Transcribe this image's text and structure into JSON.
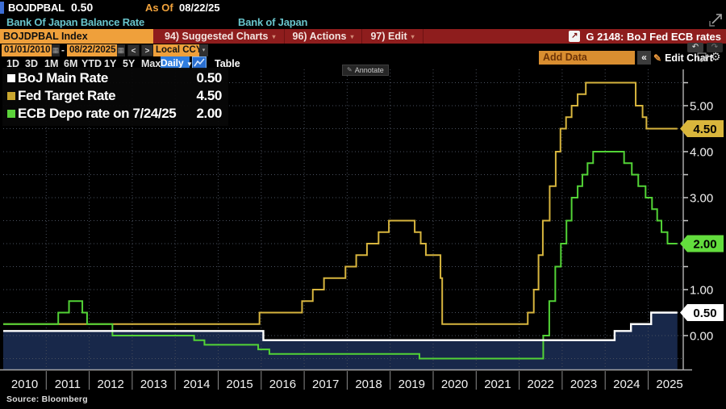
{
  "header": {
    "ticker": "BOJDPBAL",
    "last_value": "0.50",
    "as_of_label": "As Of",
    "as_of_date": "08/22/25",
    "security_name": "Bank Of Japan Balance Rate",
    "issuer": "Bank of Japan",
    "index_field": "BOJDPBAL Index",
    "menu": [
      {
        "label": "94) Suggested Charts"
      },
      {
        "label": "96) Actions"
      },
      {
        "label": "97) Edit"
      }
    ],
    "chart_tag": "G 2148: BoJ Fed ECB rates"
  },
  "toolbar": {
    "date_from": "01/01/2010",
    "date_to": "08/22/2025",
    "range_separator": "-",
    "prev": "<",
    "next": ">",
    "currency": "Local CCY",
    "periods": [
      "1D",
      "3D",
      "1M",
      "6M",
      "YTD",
      "1Y",
      "5Y",
      "Max"
    ],
    "frequency": "Daily",
    "table_label": "Table",
    "add_data_placeholder": "Add Data",
    "collapse_label": "«",
    "edit_chart_label": "Edit Chart",
    "annotate_label": "Annotate"
  },
  "legend": {
    "rows": [
      {
        "label": "BoJ Main Rate",
        "value": "0.50",
        "color": "#ffffff"
      },
      {
        "label": "Fed Target Rate",
        "value": "4.50",
        "color": "#c9a62f"
      },
      {
        "label": "ECB Depo rate on 7/24/25",
        "value": "2.00",
        "color": "#5bd23a"
      }
    ]
  },
  "chart_data": {
    "type": "line",
    "step": true,
    "x_range": [
      2010,
      2025.68
    ],
    "x_ticks": [
      2010,
      2011,
      2012,
      2013,
      2014,
      2015,
      2016,
      2017,
      2018,
      2019,
      2020,
      2021,
      2022,
      2023,
      2024,
      2025
    ],
    "ylim": [
      -0.74,
      5.79
    ],
    "y_labeled_ticks": [
      0,
      1,
      2,
      3,
      4,
      5
    ],
    "y_minor_interval": 0.5,
    "grid": true,
    "legend_position": "top-left",
    "series": [
      {
        "name": "BoJ Main Rate",
        "color": "#ffffff",
        "width": 2.4,
        "area_fill": "#18284a",
        "last_label": "0.50",
        "points": [
          [
            2010,
            0.1
          ],
          [
            2016.05,
            -0.1
          ],
          [
            2024.22,
            0.1
          ],
          [
            2024.6,
            0.25
          ],
          [
            2025.07,
            0.5
          ]
        ]
      },
      {
        "name": "Fed Target Rate",
        "color": "#d7b53e",
        "width": 2,
        "last_label": "4.50",
        "points": [
          [
            2010,
            0.25
          ],
          [
            2015.96,
            0.5
          ],
          [
            2016.95,
            0.75
          ],
          [
            2017.2,
            1.0
          ],
          [
            2017.46,
            1.25
          ],
          [
            2017.96,
            1.5
          ],
          [
            2018.21,
            1.75
          ],
          [
            2018.46,
            2.0
          ],
          [
            2018.73,
            2.25
          ],
          [
            2018.97,
            2.5
          ],
          [
            2019.57,
            2.25
          ],
          [
            2019.71,
            2.0
          ],
          [
            2019.83,
            1.75
          ],
          [
            2020.17,
            1.25
          ],
          [
            2020.21,
            0.25
          ],
          [
            2022.2,
            0.5
          ],
          [
            2022.34,
            1.0
          ],
          [
            2022.45,
            1.75
          ],
          [
            2022.55,
            2.5
          ],
          [
            2022.71,
            3.25
          ],
          [
            2022.85,
            4.0
          ],
          [
            2022.96,
            4.5
          ],
          [
            2023.09,
            4.75
          ],
          [
            2023.22,
            5.0
          ],
          [
            2023.36,
            5.25
          ],
          [
            2023.55,
            5.5
          ],
          [
            2024.71,
            5.0
          ],
          [
            2024.87,
            4.75
          ],
          [
            2024.96,
            4.5
          ]
        ]
      },
      {
        "name": "ECB Depo rate on 7/24/25",
        "color": "#52d336",
        "width": 2,
        "last_label": "2.00",
        "points": [
          [
            2010,
            0.25
          ],
          [
            2011.28,
            0.5
          ],
          [
            2011.53,
            0.75
          ],
          [
            2011.84,
            0.5
          ],
          [
            2011.95,
            0.25
          ],
          [
            2012.54,
            0.0
          ],
          [
            2014.44,
            -0.1
          ],
          [
            2014.68,
            -0.2
          ],
          [
            2015.93,
            -0.3
          ],
          [
            2016.19,
            -0.4
          ],
          [
            2019.68,
            -0.5
          ],
          [
            2022.56,
            0.0
          ],
          [
            2022.7,
            0.75
          ],
          [
            2022.84,
            1.5
          ],
          [
            2022.97,
            2.0
          ],
          [
            2023.1,
            2.5
          ],
          [
            2023.22,
            3.0
          ],
          [
            2023.36,
            3.25
          ],
          [
            2023.47,
            3.5
          ],
          [
            2023.59,
            3.75
          ],
          [
            2023.72,
            4.0
          ],
          [
            2024.44,
            3.75
          ],
          [
            2024.62,
            3.5
          ],
          [
            2024.77,
            3.25
          ],
          [
            2024.94,
            3.0
          ],
          [
            2025.09,
            2.75
          ],
          [
            2025.21,
            2.5
          ],
          [
            2025.31,
            2.25
          ],
          [
            2025.45,
            2.0
          ]
        ]
      }
    ],
    "badges": [
      {
        "value": 4.5,
        "label": "4.50",
        "bg": "#d9b63c"
      },
      {
        "value": 2.0,
        "label": "2.00",
        "bg": "#63dd3d"
      },
      {
        "value": 0.5,
        "label": "0.50",
        "bg": "#ffffff"
      }
    ]
  },
  "footer": {
    "source": "Source: Bloomberg"
  }
}
